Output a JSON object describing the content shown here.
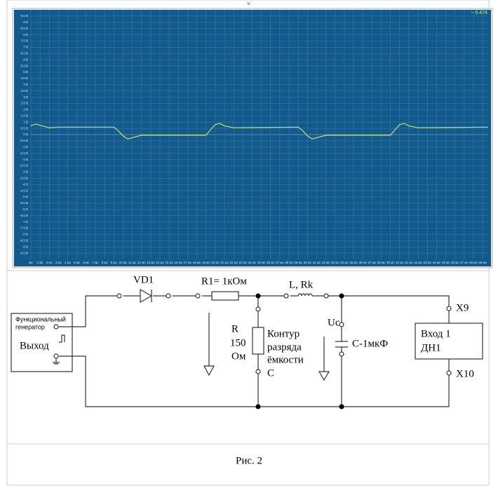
{
  "header": {
    "mark": "9с"
  },
  "chart_data": {
    "type": "line",
    "readout": "~ 0.474",
    "xlim": [
      0,
      49.6
    ],
    "ylim": [
      -10,
      10
    ],
    "grid": true,
    "x": [
      0,
      0.5,
      1,
      2,
      3,
      9,
      9.5,
      10,
      10.5,
      11,
      12,
      19,
      19.5,
      20,
      20.5,
      21,
      22,
      29,
      29.5,
      30,
      30.5,
      31,
      32,
      39,
      39.5,
      40,
      40.5,
      41,
      42,
      49.6
    ],
    "series": [
      {
        "color": "#c9e36a",
        "values": [
          0.7,
          0.85,
          0.75,
          0.55,
          0.6,
          0.6,
          0.3,
          -0.1,
          -0.35,
          -0.25,
          -0.05,
          -0.05,
          0.4,
          0.8,
          0.9,
          0.7,
          0.55,
          0.6,
          0.3,
          -0.1,
          -0.35,
          -0.25,
          -0.05,
          -0.05,
          0.4,
          0.8,
          0.9,
          0.7,
          0.55,
          0.6
        ]
      }
    ],
    "yticks": [
      {
        "value": 9.5,
        "label": "9.5 В"
      },
      {
        "value": 9,
        "label": "9 В"
      },
      {
        "value": 8.5,
        "label": "8.5 В"
      },
      {
        "value": 8,
        "label": "8 В"
      },
      {
        "value": 7.5,
        "label": "7.5 В"
      },
      {
        "value": 7,
        "label": "7 В"
      },
      {
        "value": 6.5,
        "label": "6.5 В"
      },
      {
        "value": 6,
        "label": "6 В"
      },
      {
        "value": 5.5,
        "label": "5.5 В"
      },
      {
        "value": 5,
        "label": "5 В"
      },
      {
        "value": 4.5,
        "label": "4.5 В"
      },
      {
        "value": 4,
        "label": "4 В"
      },
      {
        "value": 3.5,
        "label": "3.5 В"
      },
      {
        "value": 3,
        "label": "3 В"
      },
      {
        "value": 2.5,
        "label": "2.5 В"
      },
      {
        "value": 2,
        "label": "2 В"
      },
      {
        "value": 1.5,
        "label": "1.5 В"
      },
      {
        "value": 1,
        "label": "1 В"
      },
      {
        "value": 0.5,
        "label": "0.5 В"
      },
      {
        "value": 0,
        "label": "0 В"
      },
      {
        "value": -0.5,
        "label": "-0.5 В"
      },
      {
        "value": -1,
        "label": "-1 В"
      },
      {
        "value": -1.5,
        "label": "-1.5 В"
      },
      {
        "value": -2,
        "label": "-2 В"
      },
      {
        "value": -2.5,
        "label": "-2.5 В"
      },
      {
        "value": -3,
        "label": "-3 В"
      },
      {
        "value": -3.5,
        "label": "-3.5 В"
      },
      {
        "value": -4,
        "label": "-4 В"
      },
      {
        "value": -4.5,
        "label": "-4.5 В"
      },
      {
        "value": -5,
        "label": "-5 В"
      },
      {
        "value": -5.5,
        "label": "-5.5 В"
      },
      {
        "value": -6,
        "label": "-6 В"
      },
      {
        "value": -6.5,
        "label": "-6.5 В"
      },
      {
        "value": -7,
        "label": "-7 В"
      },
      {
        "value": -7.5,
        "label": "-7.5 В"
      },
      {
        "value": -8,
        "label": "-8 В"
      },
      {
        "value": -8.5,
        "label": "-8.5 В"
      },
      {
        "value": -9,
        "label": "-9 В"
      },
      {
        "value": -9.5,
        "label": "-9.5 В"
      }
    ],
    "xticks": [
      {
        "value": 0,
        "label": "мс"
      },
      {
        "value": 1,
        "label": "1 мс"
      },
      {
        "value": 2,
        "label": "2 мс"
      },
      {
        "value": 3,
        "label": "3 мс"
      },
      {
        "value": 4,
        "label": "4 мс"
      },
      {
        "value": 5,
        "label": "5 мс"
      },
      {
        "value": 6,
        "label": "6 мс"
      },
      {
        "value": 7,
        "label": "7 мс"
      },
      {
        "value": 8,
        "label": "8 мс"
      },
      {
        "value": 9,
        "label": "9 мс"
      },
      {
        "value": 10,
        "label": "10 мс"
      },
      {
        "value": 11,
        "label": "11 мс"
      },
      {
        "value": 12,
        "label": "12 мс"
      },
      {
        "value": 13,
        "label": "13 мс"
      },
      {
        "value": 14,
        "label": "14 мс"
      },
      {
        "value": 15,
        "label": "15 мс"
      },
      {
        "value": 16,
        "label": "16 мс"
      },
      {
        "value": 17,
        "label": "17 мс"
      },
      {
        "value": 18,
        "label": "18 мс"
      },
      {
        "value": 19,
        "label": "19 мс"
      },
      {
        "value": 20,
        "label": "20 мс"
      },
      {
        "value": 21,
        "label": "21 мс"
      },
      {
        "value": 22,
        "label": "22 мс"
      },
      {
        "value": 23,
        "label": "23 мс"
      },
      {
        "value": 24,
        "label": "24 мс"
      },
      {
        "value": 25,
        "label": "25 мс"
      },
      {
        "value": 26,
        "label": "26 мс"
      },
      {
        "value": 27,
        "label": "27 мс"
      },
      {
        "value": 28,
        "label": "28 мс"
      },
      {
        "value": 29,
        "label": "29 мс"
      },
      {
        "value": 30,
        "label": "30 мс"
      },
      {
        "value": 31,
        "label": "31 мс"
      },
      {
        "value": 32,
        "label": "32 мс"
      },
      {
        "value": 33,
        "label": "33 мс"
      },
      {
        "value": 34,
        "label": "34 мс"
      },
      {
        "value": 35,
        "label": "35 мс"
      },
      {
        "value": 36,
        "label": "36 мс"
      },
      {
        "value": 37,
        "label": "37 мс"
      },
      {
        "value": 38,
        "label": "38 мс"
      },
      {
        "value": 39,
        "label": "39 мс"
      },
      {
        "value": 40,
        "label": "40 мс"
      },
      {
        "value": 41,
        "label": "41 мс"
      },
      {
        "value": 42,
        "label": "42 мс"
      },
      {
        "value": 43,
        "label": "43 мс"
      },
      {
        "value": 44,
        "label": "44 мс"
      },
      {
        "value": 45,
        "label": "45 мс"
      },
      {
        "value": 46,
        "label": "46 мс"
      },
      {
        "value": 47,
        "label": "47 мс"
      },
      {
        "value": 48,
        "label": "48 мс"
      },
      {
        "value": 49,
        "label": "49 мс"
      }
    ]
  },
  "circuit": {
    "generator": {
      "line1": "Функциональный",
      "line2": "генератор",
      "output": "Выход"
    },
    "diode": "VD1",
    "r1": "R1= 1кОм",
    "inductor": "L, Rk",
    "r": {
      "name": "R",
      "value": "150",
      "unit": "Ом"
    },
    "contour": [
      "Контур",
      "разряда",
      "ёмкости",
      "С"
    ],
    "uc": "Uc",
    "capacitor": "С-1мкФ",
    "input": [
      "Вход 1",
      "ДН1"
    ],
    "x9": "X9",
    "x10": "X10"
  },
  "caption": "Рис. 2"
}
